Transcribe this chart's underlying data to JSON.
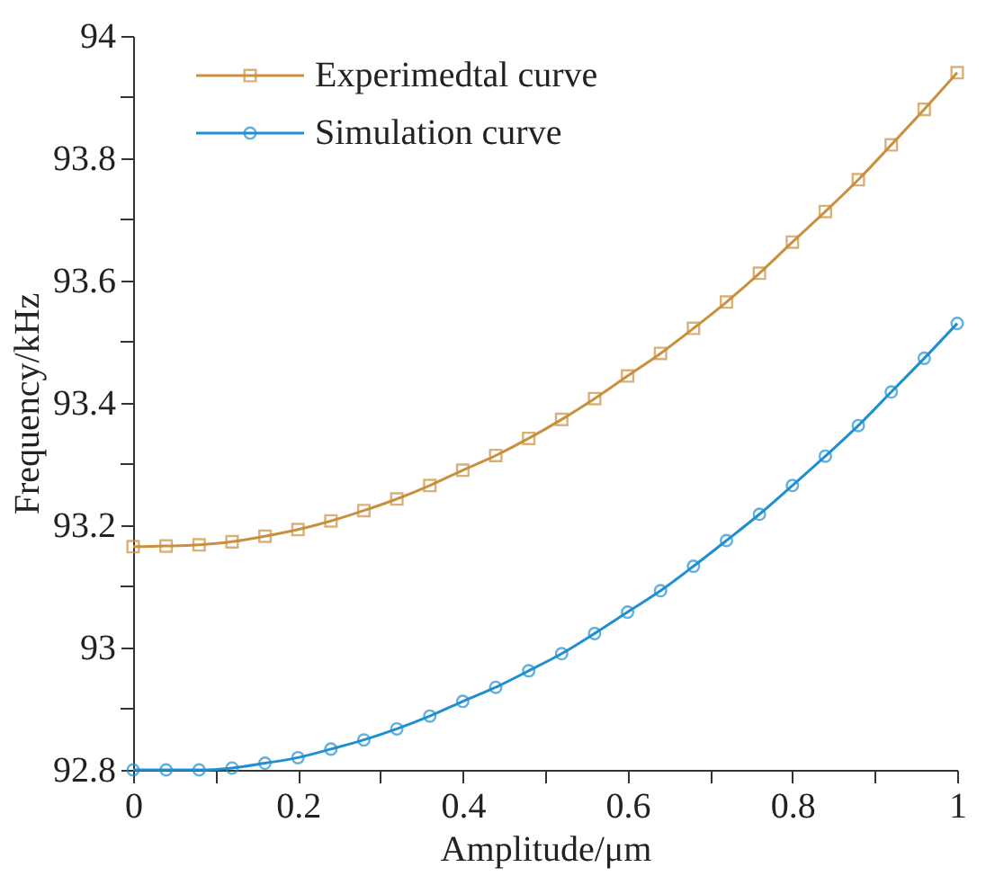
{
  "chart_data": {
    "type": "line",
    "xlabel": "Amplitude/μm",
    "ylabel": "Frequency/kHz",
    "x": [
      0,
      0.04,
      0.08,
      0.12,
      0.16,
      0.2,
      0.24,
      0.28,
      0.32,
      0.36,
      0.4,
      0.44,
      0.48,
      0.52,
      0.56,
      0.6,
      0.64,
      0.68,
      0.72,
      0.76,
      0.8,
      0.84,
      0.88,
      0.92,
      0.96,
      1
    ],
    "series": [
      {
        "name": "Experimedtal curve",
        "color": "#c8903f",
        "marker": "square",
        "values": [
          93.165,
          93.166,
          93.168,
          93.173,
          93.182,
          93.193,
          93.207,
          93.224,
          93.243,
          93.265,
          93.29,
          93.314,
          93.342,
          93.373,
          93.407,
          93.444,
          93.481,
          93.522,
          93.565,
          93.612,
          93.663,
          93.713,
          93.765,
          93.822,
          93.88,
          93.94
        ]
      },
      {
        "name": "Simulation curve",
        "color": "#1f8fd0",
        "marker": "circle",
        "values": [
          92.8,
          92.8,
          92.8,
          92.803,
          92.811,
          92.82,
          92.834,
          92.849,
          92.867,
          92.888,
          92.912,
          92.935,
          92.962,
          92.99,
          93.023,
          93.058,
          93.093,
          93.133,
          93.175,
          93.218,
          93.265,
          93.313,
          93.363,
          93.418,
          93.473,
          93.53
        ]
      }
    ],
    "xlim": [
      0,
      1
    ],
    "xticks": [
      0,
      {
        "value": 0.1,
        "label": null
      },
      0.2,
      {
        "value": 0.3,
        "label": null
      },
      0.4,
      {
        "value": 0.5,
        "label": null
      },
      0.6,
      {
        "value": 0.7,
        "label": null
      },
      0.8,
      {
        "value": 0.9,
        "label": null
      },
      1
    ],
    "ylim": [
      92.8,
      94
    ],
    "yticks": [
      92.8,
      {
        "value": 92.9,
        "label": null
      },
      93,
      {
        "value": 93.1,
        "label": null
      },
      93.2,
      {
        "value": 93.3,
        "label": null
      },
      93.4,
      {
        "value": 93.5,
        "label": null
      },
      93.6,
      {
        "value": 93.7,
        "label": null
      },
      93.8,
      {
        "value": 93.9,
        "label": null
      },
      94
    ],
    "grid": false,
    "legend": "top left",
    "line_style": "solid"
  }
}
